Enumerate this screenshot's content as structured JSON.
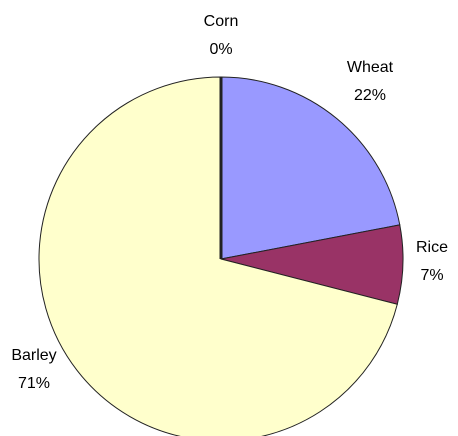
{
  "chart_data": {
    "type": "pie",
    "categories": [
      "Wheat",
      "Rice",
      "Barley",
      "Corn"
    ],
    "values": [
      22,
      7,
      71,
      0
    ],
    "value_labels": [
      "22%",
      "7%",
      "71%",
      "0%"
    ],
    "colors": [
      "#9999ff",
      "#993366",
      "#ffffcc",
      "#000000"
    ]
  }
}
